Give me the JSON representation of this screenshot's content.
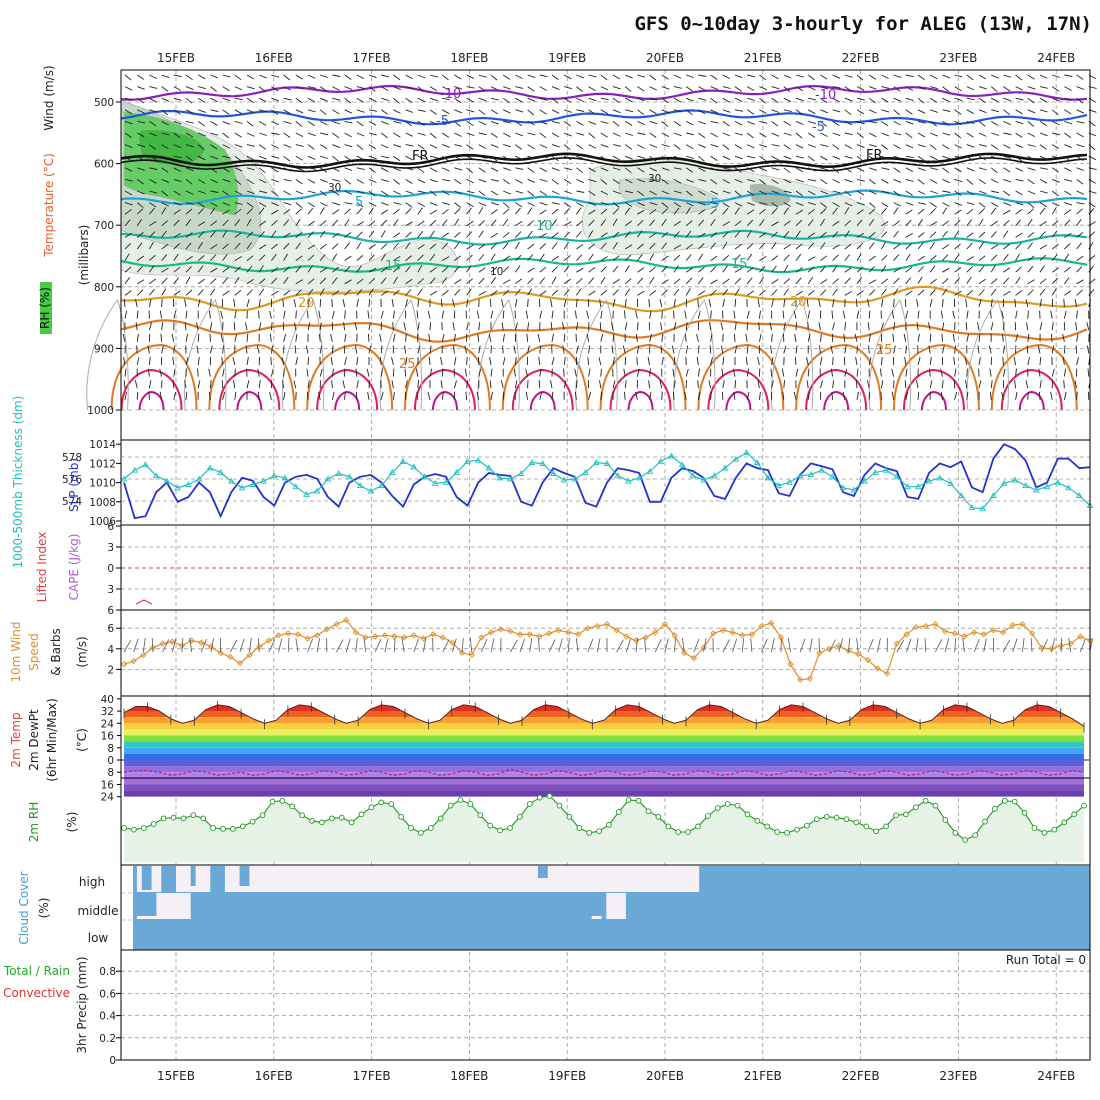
{
  "title": "GFS 0~10day 3-hourly for ALEG (13W, 17N)",
  "dates": [
    "15FEB",
    "16FEB",
    "17FEB",
    "18FEB",
    "19FEB",
    "20FEB",
    "21FEB",
    "22FEB",
    "23FEB",
    "24FEB"
  ],
  "colors": {
    "rh_green": "#44cc44",
    "temp_purple": "#8a1fc0",
    "temp_blue": "#2255dd",
    "freezing": "#111111",
    "temp_cyan": "#1aa3d8",
    "temp_teal": "#17b3a3",
    "temp_green": "#19b888",
    "temp_orange": "#e09a20",
    "temp_red": "#e02050",
    "slp": "#2233cc",
    "thickness": "#22c0c0",
    "wind10m": "#e0902a",
    "rh2m": "#229922",
    "cloud": "#6aa8d8",
    "precip_total": "#22aa22",
    "precip_conv": "#e03030"
  },
  "labels": {
    "p1_y": "(millibars)",
    "p1_wind": "Wind (m/s)",
    "p1_temp": "Temperature (°C)",
    "p1_rh": "RH (%)",
    "p2_thick": "1000-500mb Thickness (dm)",
    "p2_slp": "SLP (mb)",
    "p3_li": "Lifted Index",
    "p3_cape": "CAPE (J/kg)",
    "p4_a": "10m Wind",
    "p4_b": "Speed",
    "p4_c": "& Barbs",
    "p4_unit": "(m/s)",
    "p5_a": "2m Temp",
    "p5_b": "2m DewPt",
    "p5_c": "(6hr Min/Max)",
    "p5_unit": "(°C)",
    "p6_a": "2m RH",
    "p6_unit": "(%)",
    "p7_a": "Cloud Cover",
    "p7_unit": "(%)",
    "p7_high": "high",
    "p7_mid": "middle",
    "p7_low": "low",
    "p8_a": "Total / Rain",
    "p8_b": "Convective",
    "p8_c": "3hr Precip (mm)",
    "run_total": "Run Total = 0"
  },
  "contour_labels": {
    "minus10": "-10",
    "minus5": "-5",
    "fr": "FR",
    "plus5": "5",
    "plus10": "10",
    "plus15": "15",
    "plus20": "20",
    "plus25": "25",
    "rh30": "30",
    "rh10": "10"
  },
  "chart_data": [
    {
      "type": "heatmap",
      "name": "upper-air cross section",
      "ylabel": "(millibars)",
      "yticks": [
        500,
        600,
        700,
        800,
        900,
        1000
      ],
      "ylim": [
        450,
        1000
      ],
      "x_days": [
        0.45,
        10.25
      ],
      "temperature_levels_mb": {
        "-10": 485,
        "-5": 525,
        "FR": 595,
        "5": 655,
        "10": 720,
        "15": 765,
        "20": 820,
        "25": 870
      },
      "rh_contours": [
        "10",
        "30"
      ],
      "grid": true
    },
    {
      "type": "line",
      "name": "SLP / thickness",
      "left_yticks": [
        574,
        576,
        578
      ],
      "right_yticks": [
        1006,
        1008,
        1010,
        1012,
        1014
      ],
      "series": [
        {
          "name": "SLP (mb)",
          "axis": "right",
          "values": [
            1010,
            1006.3,
            1006.5,
            1009,
            1010,
            1008,
            1008.5,
            1010,
            1009,
            1006.5,
            1009,
            1010.5,
            1010.2,
            1008.5,
            1007.6,
            1010,
            1010.6,
            1010.8,
            1010.4,
            1008.5,
            1007.5,
            1010,
            1010.6,
            1010.8,
            1010,
            1008.6,
            1007.5,
            1009.8,
            1010.6,
            1010.9,
            1010.6,
            1008.5,
            1007.6,
            1010,
            1011,
            1010.8,
            1010.7,
            1008,
            1007.6,
            1010,
            1011.5,
            1011,
            1010.6,
            1007.9,
            1007.5,
            1010,
            1011.5,
            1011.3,
            1011,
            1008,
            1008,
            1010.5,
            1011.5,
            1011.2,
            1010.5,
            1008.6,
            1008.3,
            1010.5,
            1012,
            1011.5,
            1011.3,
            1008.9,
            1008.6,
            1010.8,
            1012,
            1011.7,
            1011.4,
            1009,
            1008.6,
            1010.8,
            1012,
            1011.5,
            1011.2,
            1008.5,
            1008.3,
            1011,
            1012,
            1011.6,
            1012.2,
            1009.5,
            1009,
            1012.5,
            1014,
            1013.5,
            1012.3,
            1009.5,
            1010,
            1012.5,
            1012.5,
            1011.5,
            1011.6
          ]
        },
        {
          "name": "1000-500mb Thickness (dm)",
          "axis": "left",
          "values": [
            576,
            576.8,
            577.3,
            576.3,
            575.8,
            575.2,
            575.5,
            576,
            577,
            576.6,
            575.8,
            575.2,
            575.5,
            575.8,
            576.3,
            576.1,
            575.3,
            574.6,
            574.9,
            576,
            576.5,
            576.2,
            575.4,
            574.9,
            575.4,
            576.6,
            577.6,
            577.1,
            576.2,
            575.6,
            575.7,
            576.6,
            577.6,
            577.7,
            577,
            576.1,
            576,
            576.5,
            577.5,
            577.4,
            576.5,
            575.9,
            576,
            576.6,
            577.5,
            577.4,
            576.3,
            575.8,
            576.1,
            576.7,
            577.6,
            578.1,
            577.3,
            576.3,
            575.9,
            576.3,
            577,
            577.8,
            578.4,
            577.5,
            576.1,
            575.4,
            575.7,
            576.3,
            576.4,
            576.8,
            576.2,
            575.2,
            575,
            575.8,
            576.6,
            576.8,
            576.2,
            575.3,
            575.3,
            575.8,
            576.1,
            575.6,
            574.5,
            573.4,
            573.3,
            574.5,
            575.6,
            575.9,
            575.4,
            575,
            575.3,
            575.7,
            575.2,
            574.5,
            573.6
          ]
        }
      ],
      "grid": true
    },
    {
      "type": "line",
      "name": "Lifted Index / CAPE",
      "yticks": [
        -6,
        -3,
        0,
        3,
        6
      ],
      "ylim": [
        -6,
        6
      ],
      "series": [
        {
          "name": "Lifted Index",
          "values": [
            6,
            6
          ]
        }
      ],
      "grid": true
    },
    {
      "type": "line",
      "name": "10m wind speed",
      "ylabel": "(m/s)",
      "yticks": [
        2,
        4,
        6
      ],
      "ylim": [
        0,
        7
      ],
      "series": [
        {
          "name": "10m Wind Speed",
          "values": [
            2.5,
            2.8,
            3.4,
            4.1,
            4.5,
            4.7,
            4.3,
            4.8,
            4.6,
            4.2,
            3.6,
            3.2,
            2.6,
            3.4,
            4.2,
            4.8,
            5.3,
            5.5,
            5.4,
            5.0,
            5.3,
            5.9,
            6.4,
            6.8,
            5.6,
            5.1,
            5.2,
            5.3,
            5.2,
            5.1,
            5.3,
            5.0,
            5.4,
            5.1,
            4.6,
            3.6,
            3.4,
            5.1,
            5.6,
            5.9,
            5.7,
            5.4,
            5.4,
            5.2,
            5.5,
            5.8,
            5.6,
            5.4,
            6.0,
            6.2,
            6.4,
            5.8,
            5.2,
            4.8,
            5.1,
            5.6,
            6.4,
            5.3,
            3.6,
            3.1,
            4.1,
            5.5,
            5.8,
            5.6,
            5.3,
            5.4,
            6.2,
            6.5,
            5.1,
            2.5,
            1.0,
            1.1,
            3.6,
            4.0,
            4.3,
            3.8,
            3.5,
            2.9,
            2.1,
            1.6,
            4.5,
            5.4,
            6.1,
            6.2,
            6.4,
            5.7,
            5.5,
            5.2,
            5.6,
            5.4,
            5.8,
            5.6,
            6.3,
            6.4,
            5.5,
            4.1,
            4.0,
            4.3,
            4.5,
            5.2,
            4.8
          ]
        }
      ],
      "grid": true
    },
    {
      "type": "area",
      "name": "2m temperature / dewpoint",
      "ylabel": "(°C)",
      "yticks": [
        -24,
        -16,
        -8,
        0,
        8,
        16,
        24,
        32,
        40
      ],
      "ylim": [
        -26,
        42
      ],
      "series": [
        {
          "name": "2m Temp",
          "values": [
            31,
            35,
            35,
            32,
            27,
            24,
            26,
            33,
            36,
            35,
            31,
            27,
            24,
            26,
            33,
            36,
            35,
            31,
            27,
            24,
            26,
            33,
            36,
            35,
            31,
            27,
            24,
            26,
            33,
            36,
            35,
            31,
            27,
            24,
            26,
            33,
            36,
            35,
            31,
            27,
            24,
            26,
            33,
            36,
            35,
            31,
            27,
            24,
            26,
            33,
            36,
            35,
            31,
            27,
            24,
            26,
            33,
            36,
            35,
            31,
            27,
            24,
            26,
            33,
            36,
            35,
            31,
            27,
            24,
            26,
            33,
            36,
            35,
            31,
            27,
            24,
            26,
            33,
            36,
            35,
            31,
            27,
            22
          ]
        },
        {
          "name": "2m DewPt",
          "values": [
            -8,
            -7,
            -7,
            -8,
            -10,
            -9,
            -7,
            -8,
            -10,
            -9,
            -8,
            -10,
            -9,
            -7,
            -8,
            -10,
            -9,
            -7,
            -8,
            -10,
            -9,
            -7,
            -8,
            -10,
            -9,
            -7,
            -8,
            -10,
            -9,
            -7,
            -8,
            -10,
            -9,
            -6,
            -8,
            -10,
            -9,
            -7,
            -8,
            -10,
            -9,
            -7,
            -8,
            -10,
            -9,
            -7,
            -8,
            -10,
            -9,
            -7,
            -8,
            -10,
            -9,
            -7,
            -8,
            -10,
            -9,
            -7,
            -8,
            -10,
            -9,
            -7,
            -8,
            -10,
            -9,
            -7,
            -8,
            -10,
            -9,
            -7,
            -8,
            -10,
            -9,
            -7,
            -8,
            -10,
            -9,
            -7,
            -8,
            -10,
            -9,
            -7,
            -8
          ]
        }
      ],
      "grid": true
    },
    {
      "type": "line",
      "name": "2m relative humidity",
      "ylabel": "(%)",
      "ylim": [
        0,
        100
      ],
      "series": [
        {
          "name": "2m RH",
          "values": [
            40,
            38,
            40,
            45,
            52,
            53,
            52,
            56,
            52,
            40,
            39,
            39,
            42,
            48,
            56,
            73,
            74,
            67,
            56,
            49,
            47,
            52,
            53,
            47,
            57,
            66,
            72,
            70,
            54,
            40,
            34,
            40,
            52,
            68,
            75,
            70,
            56,
            43,
            37,
            40,
            54,
            70,
            78,
            80,
            68,
            54,
            40,
            34,
            36,
            44,
            60,
            75,
            74,
            61,
            54,
            42,
            35,
            35,
            42,
            55,
            65,
            70,
            68,
            57,
            49,
            42,
            35,
            34,
            38,
            43,
            51,
            54,
            53,
            51,
            47,
            42,
            36,
            42,
            56,
            57,
            66,
            74,
            68,
            50,
            34,
            25,
            31,
            48,
            64,
            74,
            73,
            59,
            40,
            34,
            38,
            47,
            57,
            68
          ]
        }
      ],
      "grid": true
    },
    {
      "type": "heatmap",
      "name": "cloud cover",
      "ylabel": "(%)",
      "rows": [
        "high",
        "middle",
        "low"
      ],
      "clear_high_intervals_days": [
        [
          0.6,
          1.35
        ],
        [
          1.5,
          4.4
        ],
        [
          4.4,
          6.35
        ]
      ],
      "clear_middle_intervals_days": [
        [
          0.8,
          1.0
        ],
        [
          1.0,
          1.15
        ],
        [
          5.4,
          5.6
        ]
      ]
    },
    {
      "type": "bar",
      "name": "3hr precipitation",
      "ylabel": "3hr Precip (mm)",
      "yticks": [
        0,
        0.2,
        0.4,
        0.6,
        0.8
      ],
      "ylim": [
        0,
        1.0
      ],
      "values": [],
      "annotation": "Run Total = 0",
      "grid": true
    }
  ]
}
